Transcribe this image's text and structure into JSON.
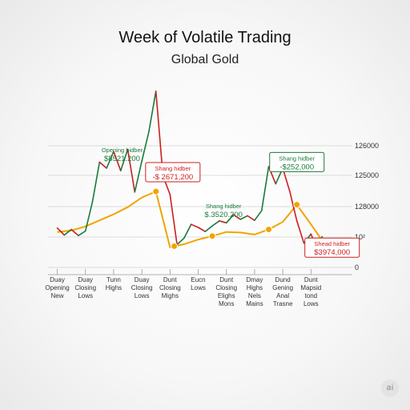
{
  "chart_data": {
    "type": "line",
    "title": "Week of Volatile Trading",
    "subtitle": "Global Gold",
    "y_tick_labels": [
      "126000",
      "125000",
      "128000",
      "10²",
      "0"
    ],
    "categories": [
      [
        "Duay",
        "Opening",
        "New"
      ],
      [
        "Duay",
        "Closing",
        "Lows"
      ],
      [
        "Tunn",
        "Highs"
      ],
      [
        "Duay",
        "Closing",
        "Lows"
      ],
      [
        "Dunt",
        "Closing",
        "Mighs"
      ],
      [
        "Eucn",
        "Lows"
      ],
      [
        "Dunt",
        "Closing",
        "Elighs",
        "Mons"
      ],
      [
        "Dmay",
        "Highs",
        "Nels",
        "Mains"
      ],
      [
        "Dund",
        "Gening",
        "Anal",
        "Trasne"
      ],
      [
        "Dunt",
        "Mapsid",
        "tond",
        "Lows"
      ]
    ],
    "series": [
      {
        "color": "#f0a400",
        "x": [
          0,
          0.5,
          1,
          1.5,
          2,
          2.5,
          3,
          3.5,
          4,
          4.5,
          5,
          5.5,
          6,
          6.5,
          7,
          7.5,
          8,
          8.5,
          9,
          9.4
        ],
        "values": [
          125.0,
          125.3,
          126.1,
          127.3,
          128.5,
          129.9,
          131.8,
          133.0,
          122.0,
          122.6,
          123.5,
          124.2,
          125.0,
          124.9,
          124.5,
          125.5,
          127.0,
          130.4,
          126.5,
          123.3
        ]
      },
      {
        "colors": {
          "up": "#1a7a3a",
          "down": "#cc1f1f"
        },
        "x": [
          0,
          0.25,
          0.5,
          0.75,
          1,
          1.25,
          1.5,
          1.75,
          2,
          2.25,
          2.5,
          2.75,
          3,
          3.25,
          3.5,
          3.75,
          4,
          4.25,
          4.5,
          4.75,
          5,
          5.25,
          5.5,
          5.75,
          6,
          6.25,
          6.5,
          6.75,
          7,
          7.25,
          7.5,
          7.75,
          8,
          8.25,
          8.5,
          8.75,
          9,
          9.2,
          9.4
        ],
        "values": [
          125.8,
          124.4,
          125.5,
          124.3,
          125.2,
          131.0,
          138.8,
          137.6,
          140.9,
          137.1,
          141.3,
          132.9,
          139.0,
          144.8,
          152.8,
          136.1,
          132.4,
          122.5,
          123.8,
          126.5,
          125.9,
          125.1,
          126.2,
          127.2,
          126.8,
          128.4,
          127.5,
          128.2,
          127.3,
          129.2,
          137.9,
          134.5,
          137.6,
          133.0,
          127.2,
          122.8,
          124.6,
          122.0,
          124.1
        ]
      }
    ],
    "markers": [
      {
        "x": 3.5,
        "y": 133.0
      },
      {
        "x": 4.15,
        "y": 122.2
      },
      {
        "x": 5.5,
        "y": 124.2
      },
      {
        "x": 7.5,
        "y": 125.5
      },
      {
        "x": 8.5,
        "y": 130.4
      }
    ],
    "annotations": [
      {
        "lines": [
          "Opening hidber",
          "$8521.200"
        ],
        "color": "#1a7a3a",
        "boxed": false,
        "x": 2.3,
        "y": 142.0
      },
      {
        "lines": [
          "Shang hidber",
          "-$ 2671,200"
        ],
        "color": "#cc1f1f",
        "boxed": true,
        "x": 4.1,
        "y": 138.4
      },
      {
        "lines": [
          "Shang hidber",
          "$.3520.200"
        ],
        "color": "#1a7a3a",
        "boxed": false,
        "x": 5.9,
        "y": 131.0
      },
      {
        "lines": [
          "Shang hidber",
          "-$252,000"
        ],
        "color": "#1a7a3a",
        "boxed": true,
        "x": 8.5,
        "y": 140.4
      },
      {
        "lines": [
          "Shead hidber",
          "$3974,000"
        ],
        "color": "#cc1f1f",
        "boxed": true,
        "x": 9.75,
        "y": 123.5
      }
    ],
    "yrange": [
      118,
      155
    ],
    "xrange": [
      -0.1,
      9.9
    ],
    "grid": true
  },
  "badge": "ai"
}
